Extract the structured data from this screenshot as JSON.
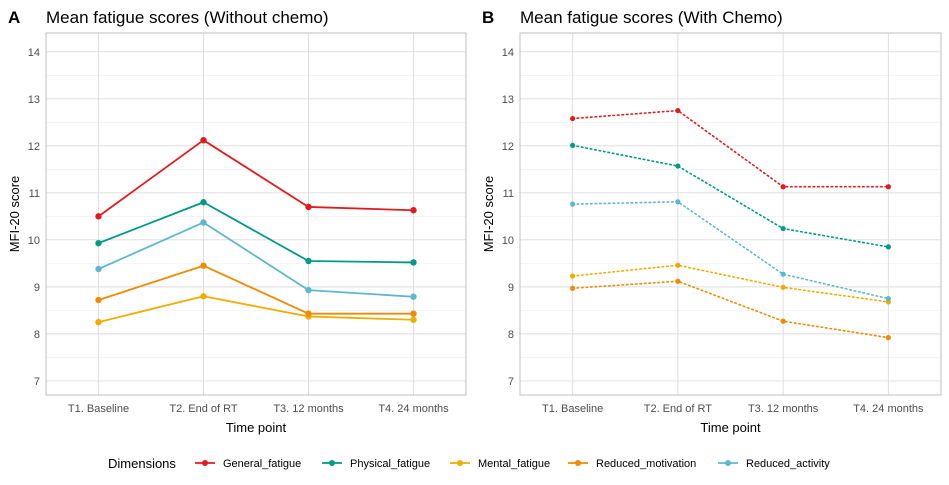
{
  "legend": {
    "title": "Dimensions",
    "placement": "bottom"
  },
  "chart_data": [
    {
      "type": "line",
      "tag": "A",
      "title": "Mean fatigue scores (Without chemo)",
      "xlabel": "Time point",
      "ylabel": "MFI-20 score",
      "categories": [
        "T1. Baseline",
        "T2. End of RT",
        "T3. 12 months",
        "T4. 24 months"
      ],
      "ylim": [
        6.7,
        14.4
      ],
      "yticks": [
        7,
        8,
        9,
        10,
        11,
        12,
        13,
        14
      ],
      "grid": true,
      "line_style": "solid",
      "series": [
        {
          "name": "General_fatigue",
          "color": "#e31a1c",
          "values": [
            10.5,
            12.12,
            10.7,
            10.63
          ]
        },
        {
          "name": "Physical_fatigue",
          "color": "#009a87",
          "values": [
            9.93,
            10.8,
            9.55,
            9.52
          ]
        },
        {
          "name": "Mental_fatigue",
          "color": "#f0ac00",
          "values": [
            8.25,
            8.8,
            8.37,
            8.3
          ]
        },
        {
          "name": "Reduced_motivation",
          "color": "#f08a00",
          "values": [
            8.72,
            9.45,
            8.43,
            8.43
          ]
        },
        {
          "name": "Reduced_activity",
          "color": "#5db8cf",
          "values": [
            9.38,
            10.37,
            8.93,
            8.79
          ]
        }
      ]
    },
    {
      "type": "line",
      "tag": "B",
      "title": "Mean fatigue scores (With Chemo)",
      "xlabel": "Time point",
      "ylabel": "MFI-20 score",
      "categories": [
        "T1. Baseline",
        "T2. End of RT",
        "T3. 12 months",
        "T4. 24 months"
      ],
      "ylim": [
        6.7,
        14.4
      ],
      "yticks": [
        7,
        8,
        9,
        10,
        11,
        12,
        13,
        14
      ],
      "grid": true,
      "line_style": "dotted",
      "series": [
        {
          "name": "General_fatigue",
          "color": "#e31a1c",
          "values": [
            12.58,
            12.75,
            11.13,
            11.13
          ]
        },
        {
          "name": "Physical_fatigue",
          "color": "#009a87",
          "values": [
            12.01,
            11.57,
            10.24,
            9.85
          ]
        },
        {
          "name": "Mental_fatigue",
          "color": "#f0ac00",
          "values": [
            9.23,
            9.46,
            8.99,
            8.68
          ]
        },
        {
          "name": "Reduced_motivation",
          "color": "#f08a00",
          "values": [
            8.97,
            9.12,
            8.27,
            7.92
          ]
        },
        {
          "name": "Reduced_activity",
          "color": "#5db8cf",
          "values": [
            10.76,
            10.81,
            9.27,
            8.75
          ]
        }
      ]
    }
  ]
}
